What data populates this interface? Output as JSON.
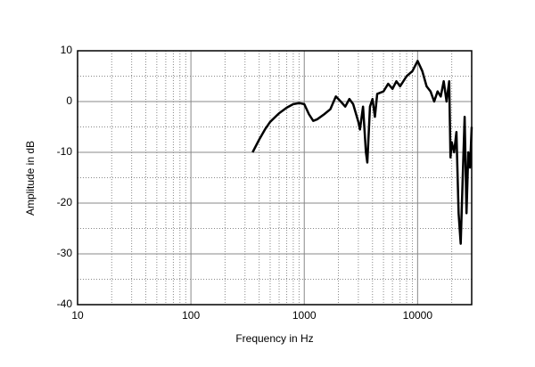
{
  "chart_data": {
    "type": "line",
    "x_label": "Frequency in Hz",
    "y_label": "Amplitude in dB",
    "log_x": true,
    "grid": true,
    "xlim": [
      10,
      30000
    ],
    "ylim": [
      -40,
      10
    ],
    "xticks": [
      10,
      100,
      1000,
      10000
    ],
    "yticks": [
      10,
      0,
      -10,
      -20,
      -30,
      -40
    ],
    "series": [
      {
        "color": "#000000",
        "x": [
          350,
          400,
          450,
          500,
          600,
          700,
          800,
          900,
          1000,
          1100,
          1200,
          1300,
          1500,
          1700,
          1900,
          2100,
          2300,
          2500,
          2700,
          3000,
          3100,
          3300,
          3500,
          3600,
          3800,
          4000,
          4200,
          4400,
          5000,
          5500,
          6000,
          6500,
          7000,
          8000,
          9000,
          10000,
          11000,
          12000,
          13000,
          14000,
          15000,
          16000,
          17000,
          18000,
          19000,
          19500,
          20000,
          21000,
          22000,
          23000,
          24000,
          25000,
          26000,
          27000,
          28000,
          29000,
          30000
        ],
        "values": [
          -10,
          -7.5,
          -5.5,
          -4,
          -2.3,
          -1.2,
          -0.5,
          -0.3,
          -0.5,
          -2.5,
          -3.8,
          -3.5,
          -2.5,
          -1.5,
          1,
          0,
          -1,
          0.5,
          -0.5,
          -4,
          -5.5,
          -1,
          -10,
          -12,
          -1,
          0.5,
          -3,
          1.5,
          2,
          3.5,
          2.5,
          4,
          3,
          5,
          6,
          8,
          6,
          3,
          2,
          0,
          2,
          1,
          4,
          0,
          4,
          -11,
          -8,
          -10,
          -6,
          -22,
          -28,
          -15,
          -3,
          -22,
          -10,
          -13,
          -5
        ]
      }
    ]
  }
}
